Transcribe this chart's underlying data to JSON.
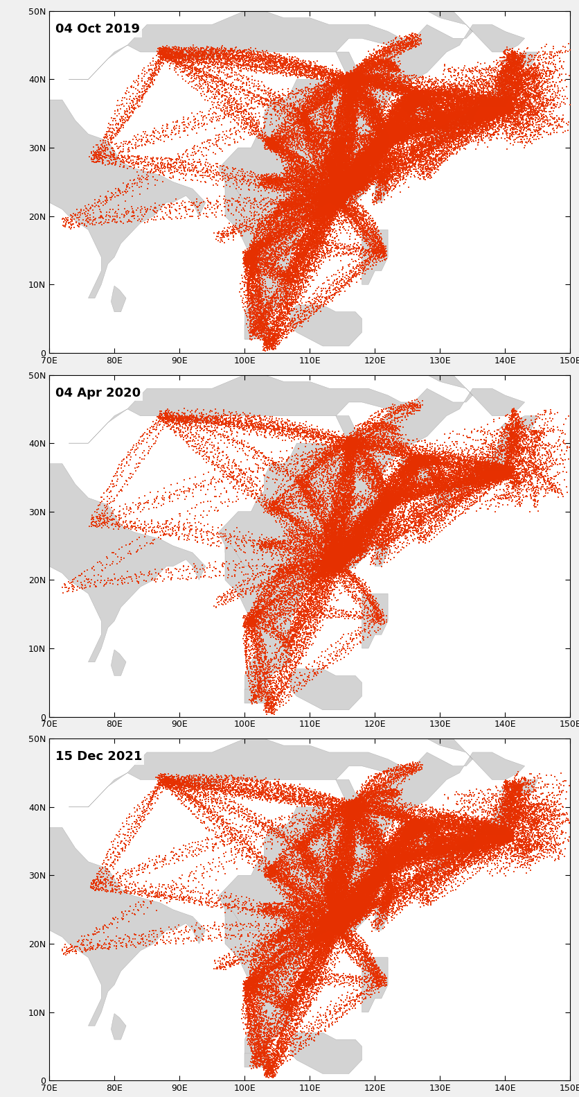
{
  "panels": [
    {
      "label": "04 Oct 2019",
      "seed": 42,
      "multiplier": 1.0
    },
    {
      "label": "04 Apr 2020",
      "seed": 100,
      "multiplier": 0.55
    },
    {
      "label": "15 Dec 2021",
      "seed": 200,
      "multiplier": 0.8
    }
  ],
  "lon_min": 70,
  "lon_max": 150,
  "lat_min": 0,
  "lat_max": 50,
  "lon_ticks": [
    70,
    80,
    90,
    100,
    110,
    120,
    130,
    140,
    150
  ],
  "lat_ticks": [
    0,
    10,
    20,
    30,
    40,
    50
  ],
  "lon_labels": [
    "70E",
    "80E",
    "90E",
    "100E",
    "110E",
    "120E",
    "130E",
    "140E",
    "150E"
  ],
  "lat_labels": [
    "0",
    "10N",
    "20N",
    "30N",
    "40N",
    "50N"
  ],
  "ocean_color": "#ffffff",
  "land_color": "#d3d3d3",
  "marker_color": "#e63000",
  "marker_size": 2.5,
  "figsize": [
    8.36,
    15.82
  ],
  "dpi": 100,
  "label_fontsize": 13,
  "tick_fontsize": 9
}
